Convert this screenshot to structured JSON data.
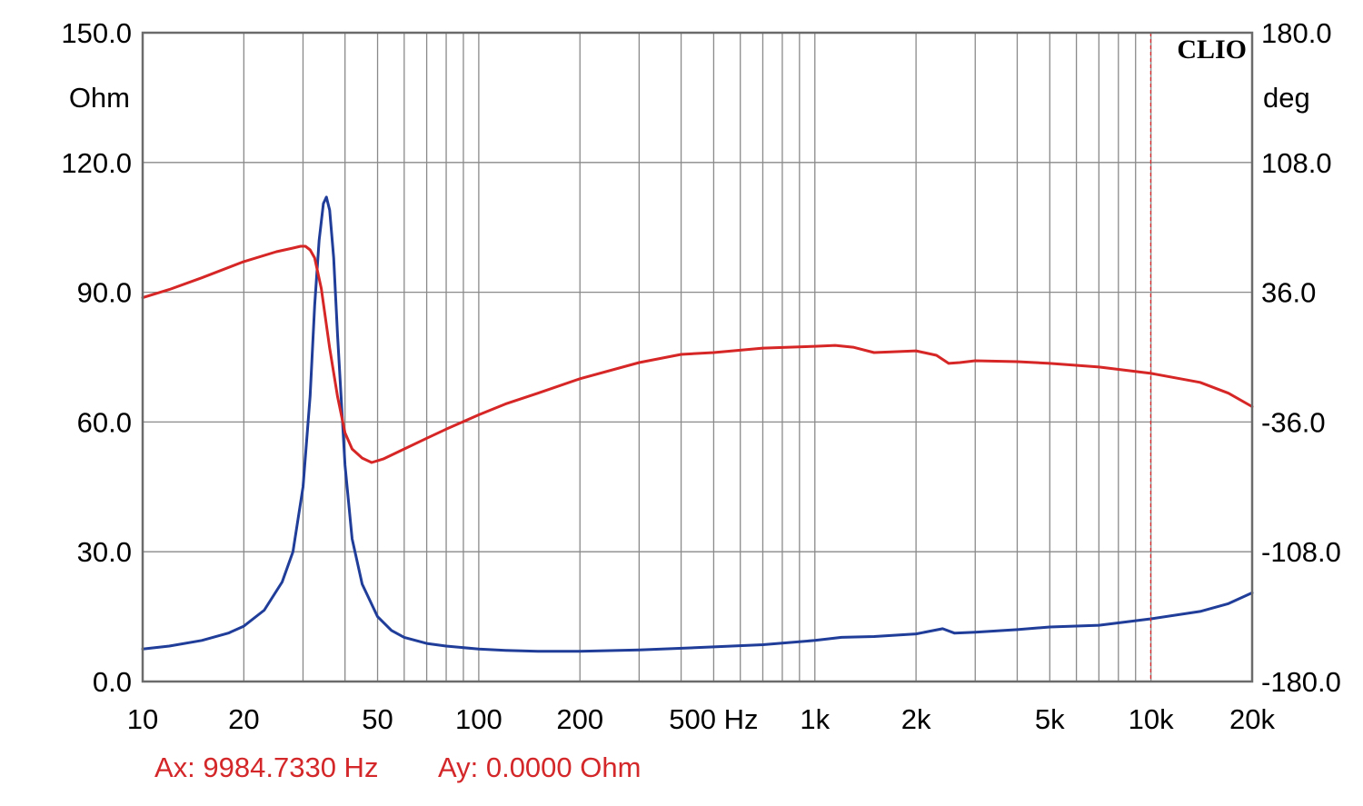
{
  "chart_data": {
    "type": "line",
    "title": "",
    "brand": "CLIO",
    "x_scale": "log",
    "xlim": [
      10,
      20000
    ],
    "x_ticks": [
      {
        "value": 10,
        "label": "10"
      },
      {
        "value": 20,
        "label": "20"
      },
      {
        "value": 50,
        "label": "50"
      },
      {
        "value": 100,
        "label": "100"
      },
      {
        "value": 200,
        "label": "200"
      },
      {
        "value": 500,
        "label": "500 Hz"
      },
      {
        "value": 1000,
        "label": "1k"
      },
      {
        "value": 2000,
        "label": "2k"
      },
      {
        "value": 5000,
        "label": "5k"
      },
      {
        "value": 10000,
        "label": "10k"
      },
      {
        "value": 20000,
        "label": "20k"
      }
    ],
    "y_left": {
      "unit": "Ohm",
      "ylim": [
        0,
        150
      ],
      "ticks": [
        "0.0",
        "30.0",
        "60.0",
        "90.0",
        "120.0",
        "150.0"
      ]
    },
    "y_right": {
      "unit": "deg",
      "ylim": [
        -180,
        180
      ],
      "ticks": [
        "-180.0",
        "-108.0",
        "-36.0",
        "36.0",
        "108.0",
        "180.0"
      ]
    },
    "grid": true,
    "cursor": {
      "x": 9984.733,
      "color": "#d3272a"
    },
    "readout": {
      "ax": "Ax: 9984.7330 Hz",
      "ay": "Ay: 0.0000 Ohm"
    },
    "series": [
      {
        "axis": "left",
        "color": "#1f3d99",
        "x": [
          10,
          12,
          15,
          18,
          20,
          23,
          26,
          28,
          30,
          31.5,
          32.5,
          33.5,
          34.5,
          35.2,
          36,
          37,
          38,
          40,
          42,
          45,
          50,
          55,
          60,
          70,
          80,
          100,
          120,
          150,
          200,
          300,
          500,
          700,
          1000,
          1200,
          1500,
          2000,
          2400,
          2600,
          3000,
          4000,
          5000,
          7000,
          10000,
          14000,
          17000,
          20000
        ],
        "values": [
          7.5,
          8.2,
          9.5,
          11.2,
          12.8,
          16.5,
          23,
          30,
          45,
          66,
          87,
          102,
          110.5,
          112,
          109,
          98,
          80,
          50,
          33,
          22.5,
          15,
          11.8,
          10.2,
          8.8,
          8.2,
          7.5,
          7.2,
          7.0,
          7.0,
          7.3,
          8.0,
          8.5,
          9.5,
          10.2,
          10.4,
          11.0,
          12.2,
          11.2,
          11.4,
          12.0,
          12.6,
          13.0,
          14.5,
          16.2,
          18.0,
          20.5
        ]
      },
      {
        "axis": "right",
        "color": "#d62626",
        "x": [
          10,
          12,
          15,
          20,
          25,
          28,
          29.5,
          30.5,
          31.5,
          32.5,
          34,
          36,
          38,
          40,
          42,
          45,
          48,
          52,
          60,
          70,
          80,
          100,
          120,
          150,
          200,
          300,
          400,
          500,
          700,
          1000,
          1150,
          1300,
          1500,
          2000,
          2300,
          2500,
          2700,
          3000,
          4000,
          5000,
          7000,
          10000,
          14000,
          17000,
          20000
        ],
        "values": [
          33,
          37.5,
          44,
          53,
          58.5,
          60.5,
          61.5,
          61.5,
          59.5,
          55,
          38,
          5,
          -22,
          -42,
          -51,
          -56,
          -58.5,
          -56.5,
          -51,
          -45,
          -40,
          -32,
          -26,
          -20,
          -12,
          -3,
          1.5,
          2.5,
          5,
          6,
          6.5,
          5.5,
          2.5,
          3.5,
          1,
          -3.5,
          -3,
          -2,
          -2.5,
          -3.5,
          -5.5,
          -9,
          -14,
          -20,
          -27.5
        ]
      }
    ]
  }
}
